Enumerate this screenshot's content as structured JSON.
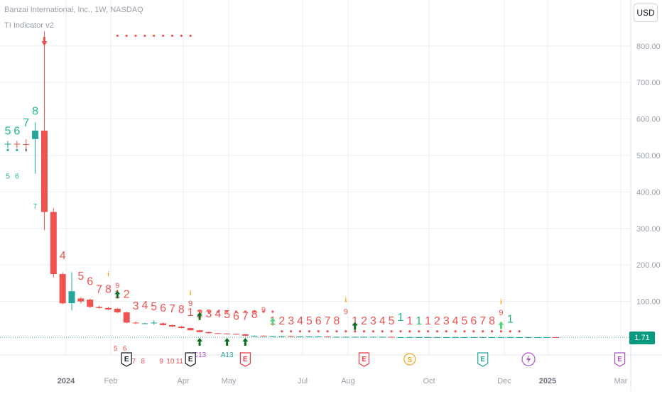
{
  "legend": {
    "symbol_line": "Banzai International, Inc., 1W, NASDAQ",
    "indicator_line": "TI Indicator v2"
  },
  "toolbar": {
    "currency_label": "USD"
  },
  "price_badge": {
    "value": "1.71"
  },
  "colors": {
    "up": "#26a69a",
    "down": "#ef5350",
    "count_green": "#1fba7a",
    "count_red": "#ef5350",
    "grid": "#eceef2",
    "axis_text": "#9aa0ab",
    "arrow_green": "#0b6e1e",
    "light_green_arrow": "#5dd47a",
    "orange": "#f7a21b",
    "purple": "#b150c8",
    "teal": "#26a69a",
    "dark": "#131722",
    "earnings_red": "#f23645",
    "last_price_line": "#26a69a"
  },
  "chart_data": {
    "type": "candlestick",
    "title": "Banzai International, Inc., 1W, NASDAQ",
    "ylim": [
      0,
      870
    ],
    "y_ticks": [
      0,
      100,
      200,
      300,
      400,
      500,
      600,
      700,
      800
    ],
    "y_tick_labels": [
      "0",
      "100.00",
      "200.00",
      "300.00",
      "400.00",
      "500.00",
      "600.00",
      "700.00",
      "800.00"
    ],
    "x_tick_labels": [
      "2024",
      "Feb",
      "Apr",
      "May",
      "Jul",
      "Aug",
      "Oct",
      "Dec",
      "2025",
      "Mar"
    ],
    "last_price": 1.71,
    "candles": [
      {
        "o": 530,
        "h": 540,
        "l": 520,
        "c": 532
      },
      {
        "o": 532,
        "h": 540,
        "l": 520,
        "c": 531
      },
      {
        "o": 531,
        "h": 545,
        "l": 510,
        "c": 530
      },
      {
        "o": 545,
        "h": 590,
        "l": 450,
        "c": 568
      },
      {
        "o": 568,
        "h": 840,
        "l": 295,
        "c": 345
      },
      {
        "o": 345,
        "h": 355,
        "l": 165,
        "c": 175
      },
      {
        "o": 175,
        "h": 180,
        "l": 92,
        "c": 95
      },
      {
        "o": 95,
        "h": 180,
        "l": 75,
        "c": 128
      },
      {
        "o": 108,
        "h": 112,
        "l": 95,
        "c": 100
      },
      {
        "o": 105,
        "h": 108,
        "l": 82,
        "c": 85
      },
      {
        "o": 85,
        "h": 88,
        "l": 80,
        "c": 82
      },
      {
        "o": 82,
        "h": 85,
        "l": 76,
        "c": 78
      },
      {
        "o": 80,
        "h": 82,
        "l": 68,
        "c": 70
      },
      {
        "o": 70,
        "h": 72,
        "l": 40,
        "c": 42
      },
      {
        "o": 42,
        "h": 45,
        "l": 38,
        "c": 40
      },
      {
        "o": 40,
        "h": 42,
        "l": 38,
        "c": 40
      },
      {
        "o": 40,
        "h": 48,
        "l": 36,
        "c": 42
      },
      {
        "o": 40,
        "h": 42,
        "l": 34,
        "c": 35
      },
      {
        "o": 35,
        "h": 37,
        "l": 30,
        "c": 31
      },
      {
        "o": 31,
        "h": 33,
        "l": 26,
        "c": 27
      },
      {
        "o": 27,
        "h": 28,
        "l": 20,
        "c": 21
      },
      {
        "o": 21,
        "h": 22,
        "l": 15,
        "c": 16
      },
      {
        "o": 16,
        "h": 17,
        "l": 12,
        "c": 13
      },
      {
        "o": 13,
        "h": 14,
        "l": 11,
        "c": 12
      },
      {
        "o": 12,
        "h": 13,
        "l": 10,
        "c": 11
      },
      {
        "o": 11,
        "h": 12,
        "l": 9,
        "c": 10
      },
      {
        "o": 10,
        "h": 11,
        "l": 5,
        "c": 6
      },
      {
        "o": 6,
        "h": 7,
        "l": 5,
        "c": 6
      },
      {
        "o": 6,
        "h": 7,
        "l": 4,
        "c": 5
      },
      {
        "o": 5,
        "h": 6,
        "l": 4,
        "c": 5
      },
      {
        "o": 5,
        "h": 6,
        "l": 4,
        "c": 5
      },
      {
        "o": 5,
        "h": 6,
        "l": 3,
        "c": 4
      },
      {
        "o": 4,
        "h": 5,
        "l": 3,
        "c": 4
      },
      {
        "o": 4,
        "h": 5,
        "l": 3,
        "c": 4
      },
      {
        "o": 4,
        "h": 5,
        "l": 3,
        "c": 4
      },
      {
        "o": 4,
        "h": 5,
        "l": 3,
        "c": 3
      },
      {
        "o": 3,
        "h": 4,
        "l": 2,
        "c": 3
      },
      {
        "o": 3,
        "h": 4,
        "l": 2,
        "c": 3
      },
      {
        "o": 3,
        "h": 4,
        "l": 2,
        "c": 3
      },
      {
        "o": 3,
        "h": 4,
        "l": 2,
        "c": 3
      },
      {
        "o": 3,
        "h": 4,
        "l": 2,
        "c": 3
      },
      {
        "o": 3,
        "h": 4,
        "l": 2,
        "c": 3
      },
      {
        "o": 3,
        "h": 4,
        "l": 2,
        "c": 2
      },
      {
        "o": 2,
        "h": 3,
        "l": 2,
        "c": 2
      },
      {
        "o": 2,
        "h": 3,
        "l": 2,
        "c": 2
      },
      {
        "o": 2,
        "h": 3,
        "l": 2,
        "c": 2
      },
      {
        "o": 2,
        "h": 3,
        "l": 2,
        "c": 2
      },
      {
        "o": 2,
        "h": 3,
        "l": 2,
        "c": 2
      },
      {
        "o": 2,
        "h": 3,
        "l": 2,
        "c": 2
      },
      {
        "o": 2,
        "h": 3,
        "l": 2,
        "c": 2
      },
      {
        "o": 2,
        "h": 3,
        "l": 2,
        "c": 2
      },
      {
        "o": 2,
        "h": 3,
        "l": 2,
        "c": 2
      },
      {
        "o": 2,
        "h": 3,
        "l": 1,
        "c": 2
      },
      {
        "o": 2,
        "h": 3,
        "l": 1,
        "c": 2
      },
      {
        "o": 2,
        "h": 3,
        "l": 1,
        "c": 2
      },
      {
        "o": 2,
        "h": 3,
        "l": 1,
        "c": 2
      },
      {
        "o": 2,
        "h": 3,
        "l": 1,
        "c": 2
      },
      {
        "o": 2,
        "h": 3,
        "l": 1,
        "c": 2
      },
      {
        "o": 2,
        "h": 2,
        "l": 1,
        "c": 2
      },
      {
        "o": 2,
        "h": 2,
        "l": 1,
        "c": 2
      },
      {
        "o": 2,
        "h": 2,
        "l": 1,
        "c": 1.71
      }
    ],
    "count_labels": [
      {
        "candle": 0,
        "text": "5",
        "color": "count_green",
        "price": 557
      },
      {
        "candle": 1,
        "text": "6",
        "color": "count_green",
        "price": 557
      },
      {
        "candle": 2,
        "text": "7",
        "color": "count_green",
        "price": 580
      },
      {
        "candle": 3,
        "text": "8",
        "color": "count_green",
        "price": 612
      },
      {
        "candle": 4,
        "text": "2",
        "color": "count_red",
        "price": 400
      },
      {
        "candle": 5,
        "text": "3",
        "color": "count_red",
        "price": 203
      },
      {
        "candle": 6,
        "text": "4",
        "color": "count_red",
        "price": 216
      },
      {
        "candle": 8,
        "text": "5",
        "color": "count_red",
        "price": 160
      },
      {
        "candle": 9,
        "text": "6",
        "color": "count_red",
        "price": 145
      },
      {
        "candle": 10,
        "text": "7",
        "color": "count_red",
        "price": 124
      },
      {
        "candle": 11,
        "text": "8",
        "color": "count_red",
        "price": 124
      },
      {
        "candle": 12,
        "text": "1",
        "color": "count_red",
        "price": 110
      },
      {
        "candle": 13,
        "text": "2",
        "color": "count_red",
        "price": 110
      },
      {
        "candle": 14,
        "text": "3",
        "color": "count_red",
        "price": 78
      },
      {
        "candle": 15,
        "text": "4",
        "color": "count_red",
        "price": 80
      },
      {
        "candle": 16,
        "text": "5",
        "color": "count_red",
        "price": 76
      },
      {
        "candle": 17,
        "text": "6",
        "color": "count_red",
        "price": 72
      },
      {
        "candle": 18,
        "text": "7",
        "color": "count_red",
        "price": 70
      },
      {
        "candle": 19,
        "text": "8",
        "color": "count_red",
        "price": 68
      },
      {
        "candle": 20,
        "text": "1",
        "color": "count_red",
        "price": 60
      },
      {
        "candle": 21,
        "text": "2",
        "color": "count_red",
        "price": 56
      },
      {
        "candle": 22,
        "text": "3",
        "color": "count_red",
        "price": 56
      },
      {
        "candle": 23,
        "text": "4",
        "color": "count_red",
        "price": 56
      },
      {
        "candle": 24,
        "text": "5",
        "color": "count_red",
        "price": 54
      },
      {
        "candle": 25,
        "text": "6",
        "color": "count_red",
        "price": 50
      },
      {
        "candle": 26,
        "text": "7",
        "color": "count_red",
        "price": 50
      },
      {
        "candle": 27,
        "text": "8",
        "color": "count_red",
        "price": 54
      },
      {
        "candle": 29,
        "text": "1",
        "color": "count_red",
        "price": 37
      },
      {
        "candle": 30,
        "text": "2",
        "color": "count_red",
        "price": 37
      },
      {
        "candle": 31,
        "text": "3",
        "color": "count_red",
        "price": 37
      },
      {
        "candle": 32,
        "text": "4",
        "color": "count_red",
        "price": 37
      },
      {
        "candle": 33,
        "text": "5",
        "color": "count_red",
        "price": 37
      },
      {
        "candle": 34,
        "text": "6",
        "color": "count_red",
        "price": 37
      },
      {
        "candle": 35,
        "text": "7",
        "color": "count_red",
        "price": 37
      },
      {
        "candle": 36,
        "text": "8",
        "color": "count_red",
        "price": 37
      },
      {
        "candle": 38,
        "text": "1",
        "color": "count_red",
        "price": 37
      },
      {
        "candle": 39,
        "text": "2",
        "color": "count_red",
        "price": 37
      },
      {
        "candle": 40,
        "text": "3",
        "color": "count_red",
        "price": 37
      },
      {
        "candle": 41,
        "text": "4",
        "color": "count_red",
        "price": 37
      },
      {
        "candle": 42,
        "text": "5",
        "color": "count_red",
        "price": 37
      },
      {
        "candle": 43,
        "text": "1",
        "color": "count_green",
        "price": 47
      },
      {
        "candle": 44,
        "text": "1",
        "color": "count_red",
        "price": 37
      },
      {
        "candle": 45,
        "text": "1",
        "color": "count_green",
        "price": 37
      },
      {
        "candle": 46,
        "text": "1",
        "color": "count_red",
        "price": 37
      },
      {
        "candle": 47,
        "text": "2",
        "color": "count_red",
        "price": 37
      },
      {
        "candle": 48,
        "text": "3",
        "color": "count_red",
        "price": 37
      },
      {
        "candle": 49,
        "text": "4",
        "color": "count_red",
        "price": 37
      },
      {
        "candle": 50,
        "text": "5",
        "color": "count_red",
        "price": 37
      },
      {
        "candle": 51,
        "text": "6",
        "color": "count_red",
        "price": 37
      },
      {
        "candle": 52,
        "text": "7",
        "color": "count_red",
        "price": 37
      },
      {
        "candle": 53,
        "text": "8",
        "color": "count_red",
        "price": 37
      },
      {
        "candle": 55,
        "text": "1",
        "color": "count_green",
        "price": 42
      }
    ],
    "nine_labels": [
      {
        "candle": 12,
        "price": 136
      },
      {
        "candle": 20,
        "price": 88
      },
      {
        "candle": 28,
        "price": 70
      },
      {
        "candle": 37,
        "price": 65
      },
      {
        "candle": 54,
        "price": 62
      }
    ],
    "exclamations": [
      {
        "candle": 11,
        "price": 168
      },
      {
        "candle": 20,
        "price": 117
      },
      {
        "candle": 37,
        "price": 97
      },
      {
        "candle": 54,
        "price": 92
      }
    ],
    "up_arrows": [
      {
        "candle": 12,
        "price": 114,
        "color": "arrow_green"
      },
      {
        "candle": 21,
        "price": 55,
        "color": "arrow_green"
      },
      {
        "candle": 29,
        "price": 40,
        "color": "light_green_arrow"
      },
      {
        "candle": 38,
        "price": 28,
        "color": "arrow_green"
      },
      {
        "candle": 54,
        "price": 30,
        "color": "light_green_arrow"
      }
    ],
    "below_up_arrows": [
      {
        "candle": 21,
        "price": -14
      },
      {
        "candle": 24,
        "price": -14
      },
      {
        "candle": 26,
        "price": -14
      }
    ],
    "red_dots_top": {
      "from_candle": 12,
      "to_candle": 20,
      "price": 828
    },
    "red_dots_mid": {
      "from_candle": 21,
      "to_candle": 29,
      "price": 72
    },
    "red_dots_low": {
      "from_candle": 30,
      "to_candle": 56,
      "price": 18
    },
    "green_dots": [
      {
        "candle": 0,
        "price": 515
      },
      {
        "candle": 1,
        "price": 515
      },
      {
        "candle": 2,
        "price": 515
      }
    ],
    "left_small_counts": [
      {
        "candle": 0,
        "text": "5",
        "price": 437,
        "color": "count_green"
      },
      {
        "candle": 1,
        "text": "6",
        "price": 437,
        "color": "count_green"
      },
      {
        "candle": 3,
        "text": "7",
        "price": 354,
        "color": "count_green"
      }
    ],
    "bottom_counts": [
      {
        "candle": 11.8,
        "text": "5",
        "row": 0
      },
      {
        "candle": 12.8,
        "text": "6",
        "row": 0
      },
      {
        "candle": 13.8,
        "text": "7",
        "row": 1
      },
      {
        "candle": 14.8,
        "text": "8",
        "row": 1
      },
      {
        "candle": 16.8,
        "text": "9",
        "row": 1
      },
      {
        "candle": 17.8,
        "text": "10",
        "row": 1
      },
      {
        "candle": 18.8,
        "text": "11",
        "row": 1
      },
      {
        "candle": 19.8,
        "text": "12",
        "row": 1
      }
    ],
    "event_markers": [
      {
        "candle": 13,
        "type": "E",
        "color": "dark"
      },
      {
        "candle": 20,
        "type": "E",
        "color": "dark"
      },
      {
        "candle": 26,
        "type": "E",
        "color": "earnings_red"
      },
      {
        "candle": 39,
        "type": "E",
        "color": "earnings_red"
      },
      {
        "candle": 44,
        "type": "S",
        "color": "orange"
      },
      {
        "candle": 52,
        "type": "E",
        "color": "teal"
      },
      {
        "candle": 57,
        "type": "lightning",
        "color": "purple"
      },
      {
        "candle": 67,
        "type": "E",
        "color": "purple"
      }
    ],
    "annotations": [
      {
        "candle": 21,
        "text": "C13",
        "color": "purple"
      },
      {
        "candle": 24,
        "text": "A13",
        "color": "teal"
      }
    ]
  }
}
